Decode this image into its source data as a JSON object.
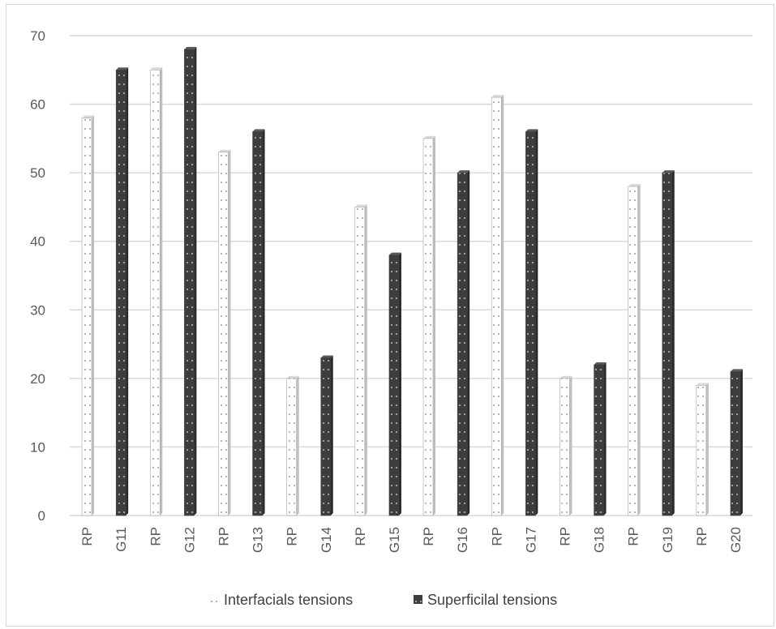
{
  "chart_data": {
    "type": "bar",
    "categories": [
      "RP",
      "G11",
      "RP",
      "G12",
      "RP",
      "G13",
      "RP",
      "G14",
      "RP",
      "G15",
      "RP",
      "G16",
      "RP",
      "G17",
      "RP",
      "G18",
      "RP",
      "G19",
      "RP",
      "G20"
    ],
    "series": [
      {
        "name": "Interfacials tensions",
        "values": [
          58,
          null,
          65,
          null,
          53,
          null,
          20,
          null,
          45,
          null,
          55,
          null,
          61,
          null,
          20,
          null,
          48,
          null,
          19,
          null
        ],
        "color": "#f2f2f2",
        "pattern": "dotted-light"
      },
      {
        "name": "Superficilal tensions",
        "values": [
          null,
          65,
          null,
          68,
          null,
          56,
          null,
          23,
          null,
          38,
          null,
          50,
          null,
          56,
          null,
          22,
          null,
          50,
          null,
          21
        ],
        "color": "#404040",
        "pattern": "dotted-dark"
      }
    ],
    "yticks": [
      0,
      10,
      20,
      30,
      40,
      50,
      60,
      70
    ],
    "ylim": [
      0,
      70
    ],
    "title": "",
    "xlabel": "",
    "ylabel": "",
    "grid": true,
    "legend": "bottom-center"
  },
  "colors": {
    "gridline": "#d9d9d9",
    "axis_text": "#595959",
    "light_bar_edge": "#a6a6a6",
    "dark_bar": "#404040"
  }
}
